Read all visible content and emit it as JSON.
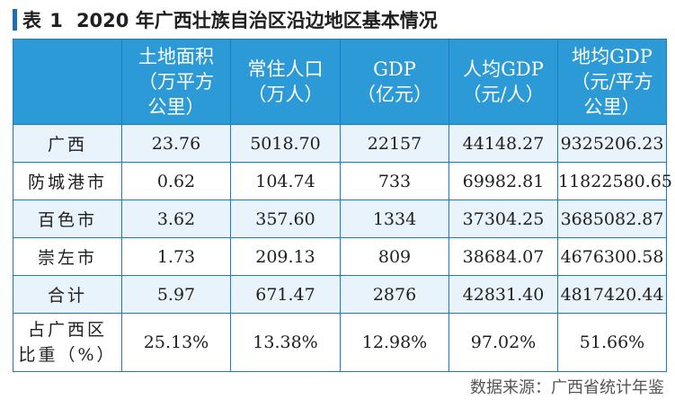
{
  "title": {
    "label": "表 1",
    "text": "2020 年广西壮族自治区沿边地区基本情况"
  },
  "table": {
    "headers": [
      "",
      "土地面积\n（万平方\n公里）",
      "常住人口\n（万人）",
      "GDP\n（亿元）",
      "人均GDP\n（元/人）",
      "地均GDP\n（元/平方\n公里）"
    ],
    "rows": [
      [
        "广西",
        "23.76",
        "5018.70",
        "22157",
        "44148.27",
        "9325206.23"
      ],
      [
        "防城港市",
        "0.62",
        "104.74",
        "733",
        "69982.81",
        "11822580.65"
      ],
      [
        "百色市",
        "3.62",
        "357.60",
        "1334",
        "37304.25",
        "3685082.87"
      ],
      [
        "崇左市",
        "1.73",
        "209.13",
        "809",
        "38684.07",
        "4676300.58"
      ],
      [
        "合计",
        "5.97",
        "671.47",
        "2876",
        "42831.40",
        "4817420.44"
      ],
      [
        "占广西区\n比重（%）",
        "25.13%",
        "13.38%",
        "12.98%",
        "97.02%",
        "51.66%"
      ]
    ]
  },
  "source": "数据来源：广西省统计年鉴",
  "colors": {
    "accent": "#1c6fb6",
    "header_bg": "#2d9ad8",
    "row_shade": "#e9f3fb",
    "border": "#1c78c8"
  }
}
